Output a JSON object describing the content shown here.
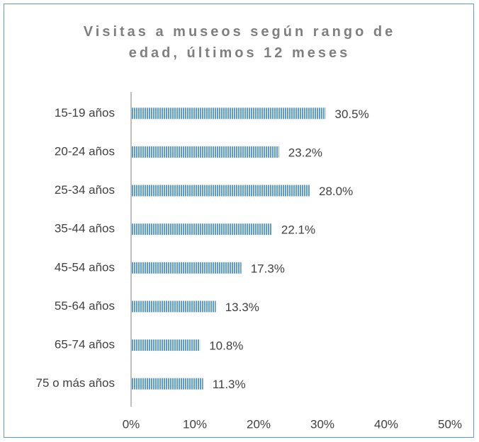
{
  "chart_data": {
    "type": "bar",
    "orientation": "horizontal",
    "title": "Visitas a museos según rango de edad, últimos 12 meses",
    "categories": [
      "15-19 años",
      "20-24 años",
      "25-34 años",
      "35-44 años",
      "45-54 años",
      "55-64 años",
      "65-74 años",
      "75 o más años"
    ],
    "values": [
      30.5,
      23.2,
      28.0,
      22.1,
      17.3,
      13.3,
      10.8,
      11.3
    ],
    "value_labels": [
      "30.5%",
      "23.2%",
      "28.0%",
      "22.1%",
      "17.3%",
      "13.3%",
      "10.8%",
      "11.3%"
    ],
    "color": "#5b9bd5",
    "xlim": [
      0,
      50
    ],
    "xticks": [
      {
        "value": 0,
        "label": "0%"
      },
      {
        "value": 10,
        "label": "10%"
      },
      {
        "value": 20,
        "label": "20%"
      },
      {
        "value": 30,
        "label": "30%"
      },
      {
        "value": 40,
        "label": "40%"
      },
      {
        "value": 50,
        "label": "50%"
      }
    ],
    "grid": false
  }
}
